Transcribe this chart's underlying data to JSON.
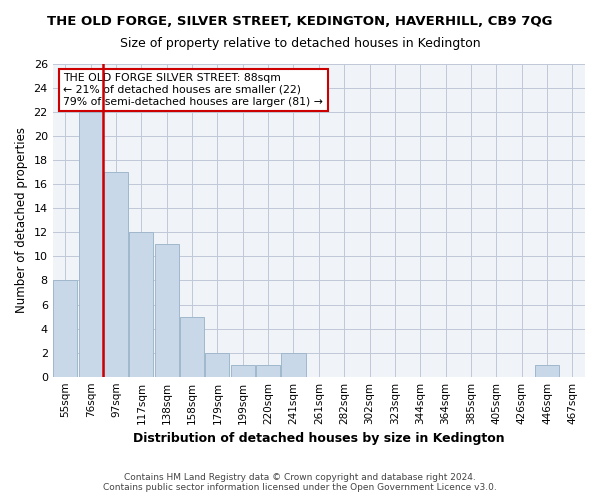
{
  "title": "THE OLD FORGE, SILVER STREET, KEDINGTON, HAVERHILL, CB9 7QG",
  "subtitle": "Size of property relative to detached houses in Kedington",
  "xlabel": "Distribution of detached houses by size in Kedington",
  "ylabel": "Number of detached properties",
  "bins": [
    "55sqm",
    "76sqm",
    "97sqm",
    "117sqm",
    "138sqm",
    "158sqm",
    "179sqm",
    "199sqm",
    "220sqm",
    "241sqm",
    "261sqm",
    "282sqm",
    "302sqm",
    "323sqm",
    "344sqm",
    "364sqm",
    "385sqm",
    "405sqm",
    "426sqm",
    "446sqm",
    "467sqm"
  ],
  "values": [
    8,
    22,
    17,
    12,
    11,
    5,
    2,
    1,
    1,
    2,
    0,
    0,
    0,
    0,
    0,
    0,
    0,
    0,
    0,
    1,
    0
  ],
  "bar_color": "#c8d8e8",
  "bar_edge_color": "#a0b8cc",
  "vline_x_index": 2,
  "vline_color": "#cc0000",
  "annotation_title": "THE OLD FORGE SILVER STREET: 88sqm",
  "annotation_line1": "← 21% of detached houses are smaller (22)",
  "annotation_line2": "79% of semi-detached houses are larger (81) →",
  "annotation_box_color": "#cc0000",
  "ylim": [
    0,
    26
  ],
  "yticks": [
    0,
    2,
    4,
    6,
    8,
    10,
    12,
    14,
    16,
    18,
    20,
    22,
    24,
    26
  ],
  "footer1": "Contains HM Land Registry data © Crown copyright and database right 2024.",
  "footer2": "Contains public sector information licensed under the Open Government Licence v3.0.",
  "bg_color": "#f0f4f8",
  "grid_color": "#c0c8d8"
}
